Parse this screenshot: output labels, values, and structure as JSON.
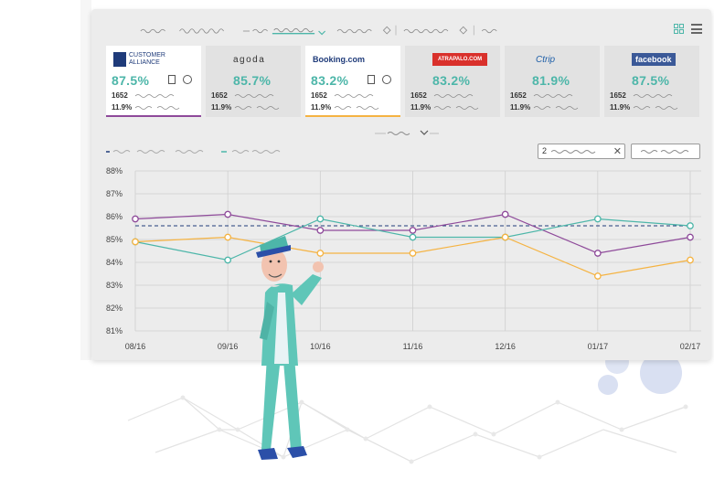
{
  "colors": {
    "teal": "#4db6a9",
    "purple": "#8e4a9a",
    "orange": "#f5b342",
    "dashed": "#1f3b7a",
    "grid": "#cfcfcf"
  },
  "cards": [
    {
      "logo_text": "CUSTOMER ALLIANCE",
      "logo_icon": "customer-alliance-logo",
      "pct": "87.5%",
      "count": "1652",
      "share": "11.9%",
      "active": true,
      "underline": "#8e4a9a",
      "has_icons": true
    },
    {
      "logo_text": "agoda",
      "logo_icon": "agoda-logo",
      "pct": "85.7%",
      "count": "1652",
      "share": "11.9%",
      "active": false,
      "underline": "",
      "has_icons": false
    },
    {
      "logo_text": "Booking.com",
      "logo_icon": "booking-logo",
      "pct": "83.2%",
      "count": "1652",
      "share": "11.9%",
      "active": true,
      "underline": "#f5b342",
      "has_icons": true
    },
    {
      "logo_text": "ATRAPALO.COM",
      "logo_icon": "atrapalo-logo",
      "pct": "83.2%",
      "count": "1652",
      "share": "11.9%",
      "active": false,
      "underline": "",
      "has_icons": false
    },
    {
      "logo_text": "Ctrip",
      "logo_icon": "ctrip-logo",
      "pct": "81.9%",
      "count": "1652",
      "share": "11.9%",
      "active": false,
      "underline": "",
      "has_icons": false
    },
    {
      "logo_text": "facebook",
      "logo_icon": "facebook-logo",
      "pct": "87.5%",
      "count": "1652",
      "share": "11.9%",
      "active": false,
      "underline": "",
      "has_icons": false
    }
  ],
  "filter": {
    "value": "2"
  },
  "chart_data": {
    "type": "line",
    "categories": [
      "08/16",
      "09/16",
      "10/16",
      "11/16",
      "12/16",
      "01/17",
      "02/17"
    ],
    "y_ticks": [
      "81%",
      "82%",
      "83%",
      "84%",
      "85%",
      "86%",
      "87%",
      "88%"
    ],
    "ylim": [
      81,
      88
    ],
    "grid": true,
    "series": [
      {
        "color": "#8e4a9a",
        "values": [
          85.9,
          86.1,
          85.4,
          85.4,
          86.1,
          84.4,
          85.1
        ]
      },
      {
        "color": "#4db6a9",
        "values": [
          84.9,
          84.1,
          85.9,
          85.1,
          85.1,
          85.9,
          85.6
        ]
      },
      {
        "color": "#f5b342",
        "values": [
          84.9,
          85.1,
          84.4,
          84.4,
          85.1,
          83.4,
          84.1
        ]
      }
    ],
    "reference_line": 85.6
  }
}
